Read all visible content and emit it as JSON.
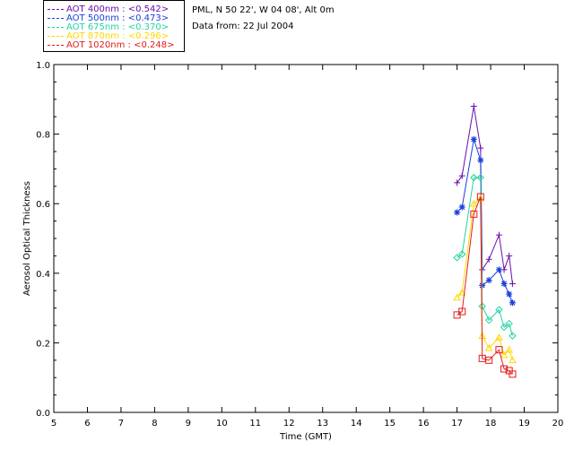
{
  "info": {
    "site": "PML, N 50 22', W 04 08', Alt 0m",
    "date": "Data from: 22 Jul 2004"
  },
  "chart_data": {
    "type": "line",
    "xlabel": "Time (GMT)",
    "ylabel": "Aerosol Optical Thickness",
    "xlim": [
      5,
      20
    ],
    "ylim": [
      0.0,
      1.0
    ],
    "xticks": [
      "5",
      "6",
      "7",
      "8",
      "9",
      "10",
      "11",
      "12",
      "13",
      "14",
      "15",
      "16",
      "17",
      "18",
      "19",
      "20"
    ],
    "yticks": [
      "0.0",
      "0.2",
      "0.4",
      "0.6",
      "0.8",
      "1.0"
    ],
    "grid": false,
    "legend_position": "top-left, above plot",
    "series": [
      {
        "name": "AOT  400nm : <0.542>",
        "color": "#6a0dad",
        "marker": "plus",
        "points": [
          [
            17.0,
            0.66
          ],
          [
            17.15,
            0.68
          ],
          [
            17.5,
            0.88
          ],
          [
            17.7,
            0.76
          ],
          [
            17.75,
            0.41
          ],
          [
            17.95,
            0.44
          ],
          [
            18.25,
            0.51
          ],
          [
            18.4,
            0.41
          ],
          [
            18.55,
            0.45
          ],
          [
            18.65,
            0.37
          ]
        ]
      },
      {
        "name": "AOT  500nm : <0.473>",
        "color": "#1a3fdc",
        "marker": "asterisk",
        "points": [
          [
            17.0,
            0.575
          ],
          [
            17.15,
            0.59
          ],
          [
            17.5,
            0.785
          ],
          [
            17.7,
            0.725
          ],
          [
            17.75,
            0.365
          ],
          [
            17.95,
            0.38
          ],
          [
            18.25,
            0.41
          ],
          [
            18.4,
            0.37
          ],
          [
            18.55,
            0.34
          ],
          [
            18.65,
            0.315
          ]
        ]
      },
      {
        "name": "AOT  675nm : <0.370>",
        "color": "#22d3a0",
        "marker": "diamond",
        "points": [
          [
            17.0,
            0.445
          ],
          [
            17.15,
            0.455
          ],
          [
            17.5,
            0.675
          ],
          [
            17.7,
            0.675
          ],
          [
            17.75,
            0.305
          ],
          [
            17.95,
            0.265
          ],
          [
            18.25,
            0.295
          ],
          [
            18.4,
            0.245
          ],
          [
            18.55,
            0.255
          ],
          [
            18.65,
            0.22
          ]
        ]
      },
      {
        "name": "AOT  870nm : <0.296>",
        "color": "#ffd700",
        "marker": "triangle",
        "points": [
          [
            17.0,
            0.33
          ],
          [
            17.15,
            0.345
          ],
          [
            17.5,
            0.6
          ],
          [
            17.7,
            0.615
          ],
          [
            17.75,
            0.22
          ],
          [
            17.95,
            0.185
          ],
          [
            18.25,
            0.215
          ],
          [
            18.4,
            0.165
          ],
          [
            18.55,
            0.18
          ],
          [
            18.65,
            0.15
          ]
        ]
      },
      {
        "name": "AOT 1020nm : <0.248>",
        "color": "#e21b1b",
        "marker": "square",
        "points": [
          [
            17.0,
            0.28
          ],
          [
            17.15,
            0.29
          ],
          [
            17.5,
            0.57
          ],
          [
            17.7,
            0.62
          ],
          [
            17.75,
            0.155
          ],
          [
            17.95,
            0.15
          ],
          [
            18.25,
            0.18
          ],
          [
            18.4,
            0.125
          ],
          [
            18.55,
            0.12
          ],
          [
            18.65,
            0.11
          ]
        ]
      }
    ]
  }
}
